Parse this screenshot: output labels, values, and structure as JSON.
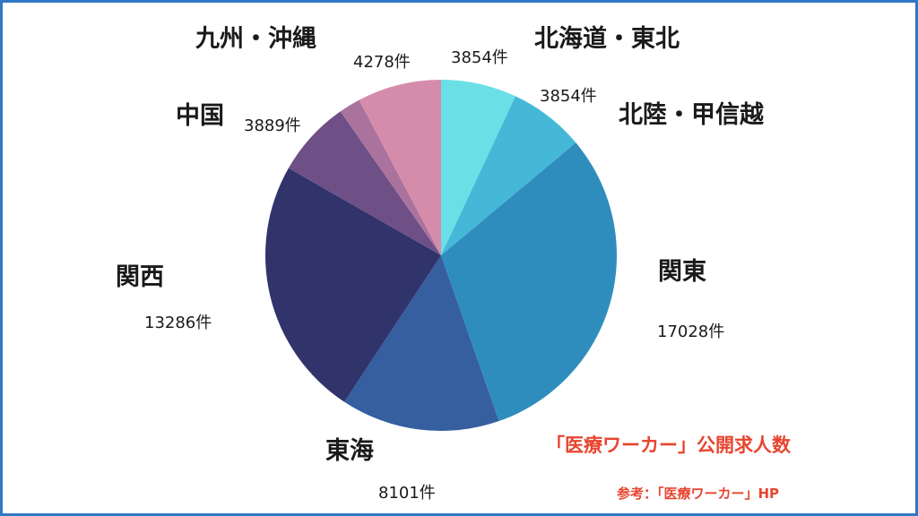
{
  "chart_data": {
    "type": "pie",
    "start": "12 o'clock",
    "direction": "clockwise",
    "slices": [
      {
        "label": "北海道・東北",
        "value": 3854,
        "value_label": "3854件",
        "color": "#6ae0e6"
      },
      {
        "label": "北陸・甲信越",
        "value": 3854,
        "value_label": "3854件",
        "color": "#45b8d8"
      },
      {
        "label": "関東",
        "value": 17028,
        "value_label": "17028件",
        "color": "#2f8dbd"
      },
      {
        "label": "東海",
        "value": 8101,
        "value_label": "8101件",
        "color": "#355f9f"
      },
      {
        "label": "関西",
        "value": 13286,
        "value_label": "13286件",
        "color": "#31336b"
      },
      {
        "label": "中国",
        "value": 3889,
        "value_label": "3889件",
        "color": "#6e4f86"
      },
      {
        "label": "九州・沖縄",
        "value": 1100,
        "value_label": "",
        "color": "#a9739d"
      },
      {
        "label": "",
        "value": 4278,
        "value_label": "4278件",
        "color": "#d58caa"
      }
    ]
  },
  "caption": "「医療ワーカー」公開求人数",
  "source": "参考：「医療ワーカー」HP"
}
